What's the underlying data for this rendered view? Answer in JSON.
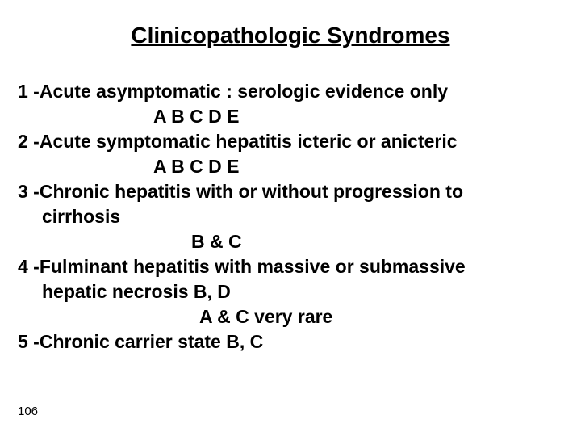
{
  "title": "Clinicopathologic Syndromes",
  "lines": {
    "l1": "1 -Acute asymptomatic : serologic evidence only",
    "l2": "A  B  C  D  E",
    "l3": "2 -Acute symptomatic hepatitis  icteric or anicteric",
    "l4": "A   B   C   D   E",
    "l5": "3 -Chronic hepatitis with or without progression to",
    "l5b": "cirrhosis",
    "l6": "B  & C",
    "l7": "4 -Fulminant hepatitis with massive or submassive",
    "l7b": "hepatic necrosis   B, D",
    "l8": "A  & C very rare",
    "l9": "5 -Chronic carrier state  B, C"
  },
  "pageNumber": "106",
  "style": {
    "background_color": "#ffffff",
    "text_color": "#000000",
    "title_fontsize": 28,
    "body_fontsize": 23,
    "font_family": "Arial",
    "font_weight": "bold"
  }
}
